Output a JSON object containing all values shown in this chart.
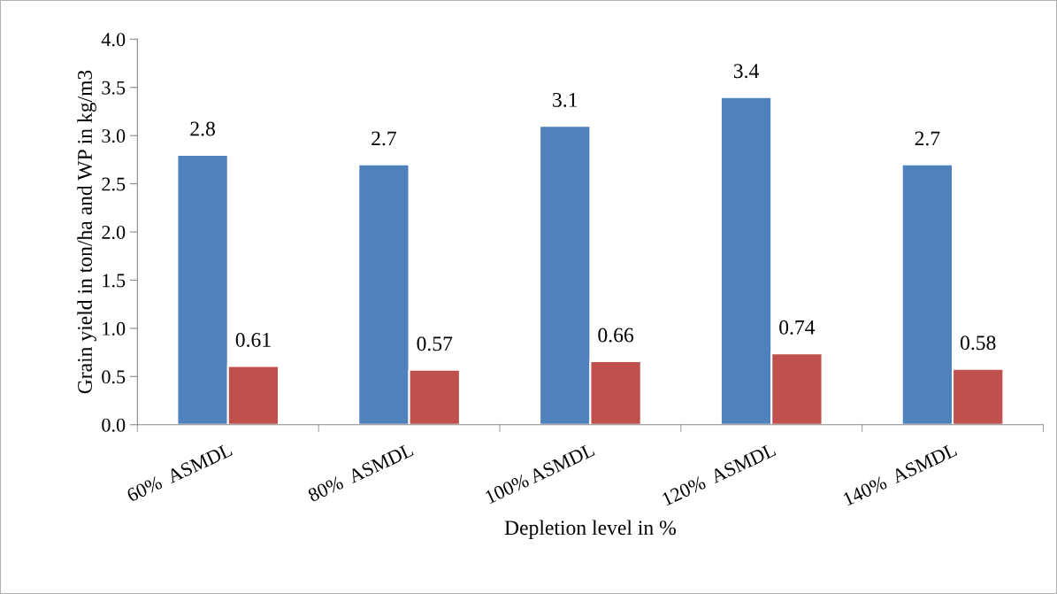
{
  "chart_data": {
    "type": "bar",
    "xlabel": "Depletion level in %",
    "ylabel": "Grain yield in ton/ha and WP in kg/m3",
    "categories": [
      "60%  ASMDL",
      "80%  ASMDL",
      "100% ASMDL",
      "120%  ASMDL",
      "140%  ASMDL"
    ],
    "series": [
      {
        "color": "#4f81bd",
        "values": [
          2.8,
          2.7,
          3.1,
          3.4,
          2.7
        ]
      },
      {
        "color": "#c0504d",
        "values": [
          0.61,
          0.57,
          0.66,
          0.74,
          0.58
        ]
      }
    ],
    "ylim": [
      0,
      4
    ],
    "yticks": [
      {
        "value": 0,
        "label": "0.0"
      },
      0.5,
      {
        "value": 1,
        "label": "1.0"
      },
      1.5,
      {
        "value": 2,
        "label": "2.0"
      },
      2.5,
      {
        "value": 3,
        "label": "3.0"
      },
      3.5,
      {
        "value": 4,
        "label": "4.0"
      }
    ],
    "data_labels": true,
    "grid": false,
    "legend": false
  }
}
